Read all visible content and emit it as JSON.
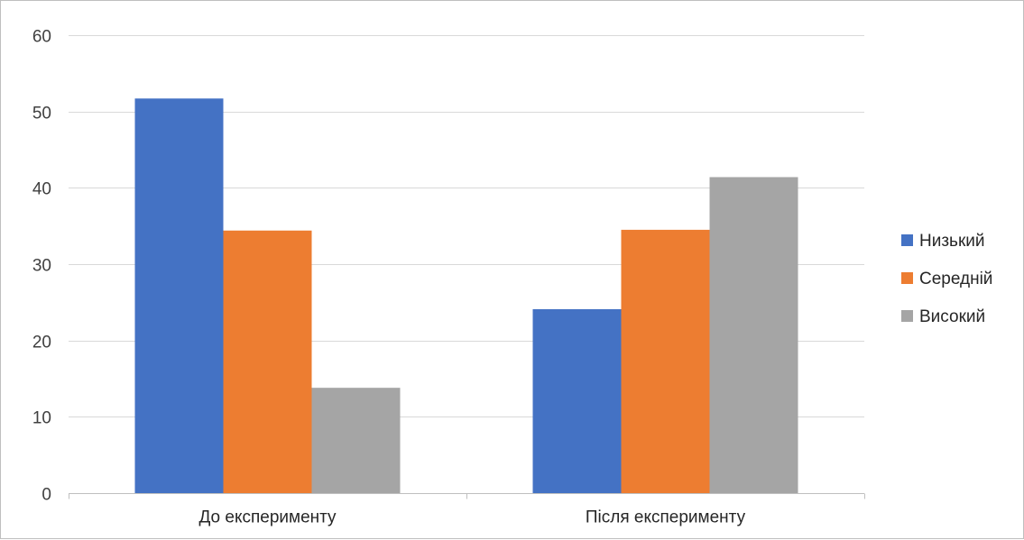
{
  "chart_data": {
    "type": "bar",
    "title": "",
    "xlabel": "",
    "ylabel": "",
    "categories": [
      "До експерименту",
      "Після експерименту"
    ],
    "series": [
      {
        "name": "Низький",
        "values": [
          51.7,
          24.1
        ],
        "color": "#4472C4"
      },
      {
        "name": "Середній",
        "values": [
          34.4,
          34.5
        ],
        "color": "#ED7D31"
      },
      {
        "name": "Високий",
        "values": [
          13.8,
          41.4
        ],
        "color": "#A5A5A5"
      }
    ],
    "ylim": [
      0,
      60
    ],
    "yticks": [
      0,
      10,
      20,
      30,
      40,
      50,
      60
    ],
    "grid": true,
    "legend": "right"
  },
  "colors": {
    "gridline": "#d9d9d9",
    "axis": "#bfbfbf",
    "border": "#bfbfbf"
  }
}
